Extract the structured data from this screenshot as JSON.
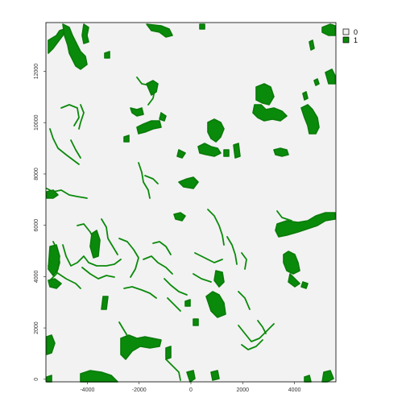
{
  "colors": {
    "class_0": "#f2f2f2",
    "class_1": "#0a8a0a",
    "frame": "#000000"
  },
  "legend": {
    "placement": "top-right",
    "items": [
      {
        "label": "0",
        "color": "#f2f2f2"
      },
      {
        "label": "1",
        "color": "#0a8a0a"
      }
    ]
  },
  "axes": {
    "x": {
      "range": [
        -5600,
        5600
      ],
      "ticks": [
        {
          "value": -4000,
          "label": "-4000"
        },
        {
          "value": -2000,
          "label": "-2000"
        },
        {
          "value": 0,
          "label": "0"
        },
        {
          "value": 2000,
          "label": "2000"
        },
        {
          "value": 4000,
          "label": "4000"
        }
      ]
    },
    "y": {
      "range": [
        -100,
        13900
      ],
      "ticks": [
        {
          "value": 0,
          "label": "0"
        },
        {
          "value": 2000,
          "label": "2000"
        },
        {
          "value": 4000,
          "label": "4000"
        },
        {
          "value": 6000,
          "label": "6000"
        },
        {
          "value": 8000,
          "label": "8000"
        },
        {
          "value": 10000,
          "label": "10000"
        },
        {
          "value": 12000,
          "label": "12000"
        }
      ]
    }
  }
}
